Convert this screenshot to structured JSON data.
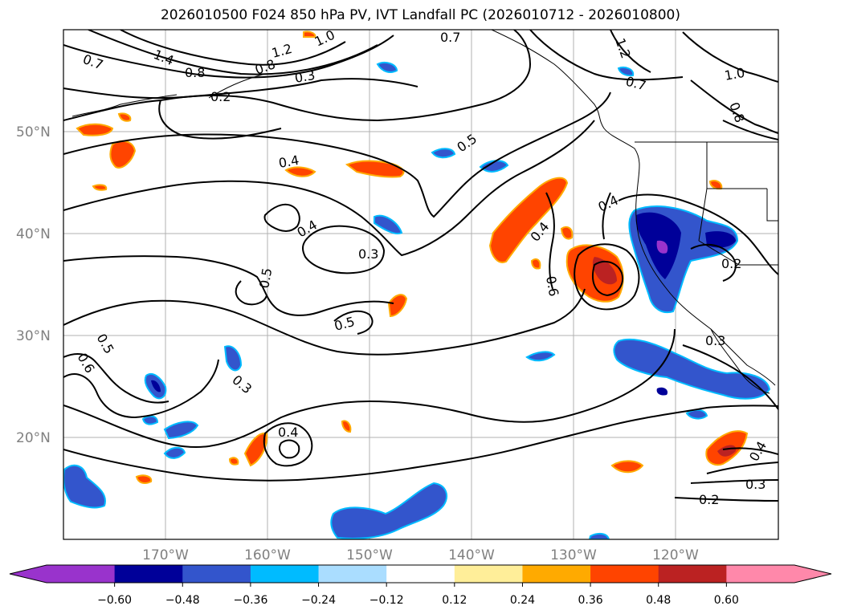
{
  "title": "2026010500 F024 850 hPa PV, IVT Landfall PC (2026010712 - 2026010800)",
  "map": {
    "projection": "PlateCarree",
    "lon_range": [
      -180,
      -110
    ],
    "lat_range": [
      10,
      60
    ],
    "gridlines": true,
    "lat_labels": [
      "50°N",
      "40°N",
      "30°N",
      "20°N"
    ],
    "lon_labels": [
      "170°W",
      "160°W",
      "150°W",
      "140°W",
      "130°W",
      "120°W"
    ]
  },
  "colorbar": {
    "extend": "both",
    "tick_labels": [
      "−0.60",
      "−0.48",
      "−0.36",
      "−0.24",
      "−0.12",
      "0.12",
      "0.24",
      "0.36",
      "0.48",
      "0.60"
    ],
    "colors": {
      "under": "#9933cc",
      "bins": [
        "#000099",
        "#3355cc",
        "#00bbff",
        "#aaddff",
        "#ffffff",
        "#ffee99",
        "#ffaa00",
        "#ff4400",
        "#bb2222"
      ],
      "over": "#ff88aa"
    }
  },
  "contour_labels": [
    "0.7",
    "1.4",
    "0.8",
    "1.2",
    "1.0",
    "0.3",
    "0.2",
    "0.8",
    "0.7",
    "1.2",
    "1.0",
    "0.8",
    "0.7",
    "0.5",
    "0.4",
    "0.4",
    "0.4",
    "0.3",
    "0.5",
    "0.4",
    "0.2",
    "0.5",
    "0.6",
    "0.5",
    "0.3",
    "0.4",
    "0.3",
    "0.4",
    "0.3",
    "0.2",
    "0.6"
  ]
}
